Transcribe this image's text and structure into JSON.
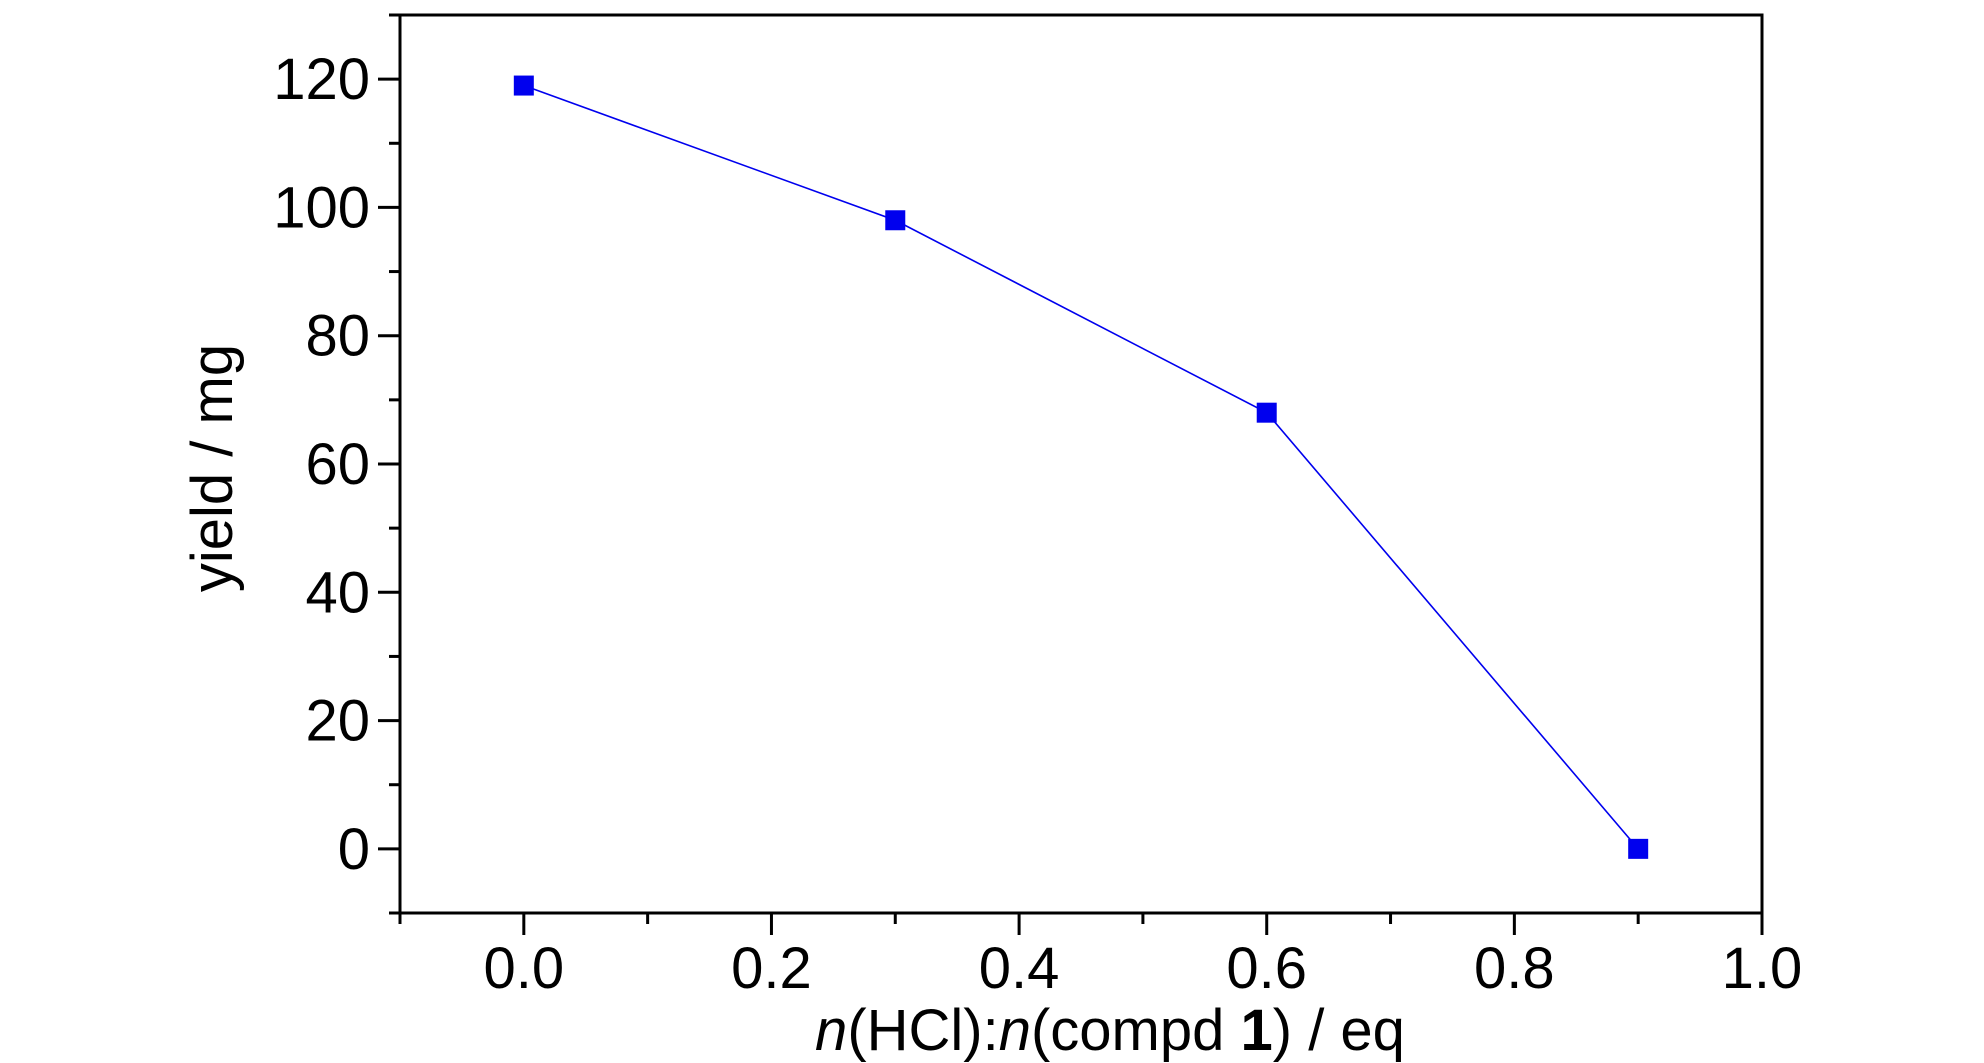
{
  "chart_data": {
    "type": "line",
    "x": [
      0.0,
      0.3,
      0.6,
      0.9
    ],
    "series": [
      {
        "values": [
          119,
          98,
          68,
          0
        ]
      }
    ],
    "xlabel_parts": [
      {
        "text": "n",
        "style": "italic"
      },
      {
        "text": "(HCl):",
        "style": "normal"
      },
      {
        "text": "n",
        "style": "italic"
      },
      {
        "text": "(compd ",
        "style": "normal"
      },
      {
        "text": "1",
        "style": "bold"
      },
      {
        "text": ") / eq",
        "style": "normal"
      }
    ],
    "ylabel": "yield / mg",
    "xlim": [
      -0.1,
      1.0
    ],
    "ylim": [
      -10,
      130
    ],
    "x_ticks": [
      "0.0",
      "0.2",
      "0.4",
      "0.6",
      "0.8",
      "1.0"
    ],
    "y_ticks": [
      "0",
      "20",
      "40",
      "60",
      "80",
      "100",
      "120"
    ],
    "grid": false,
    "legend": "none",
    "colors": {
      "series": "#0000ee",
      "axis": "#000000"
    }
  }
}
